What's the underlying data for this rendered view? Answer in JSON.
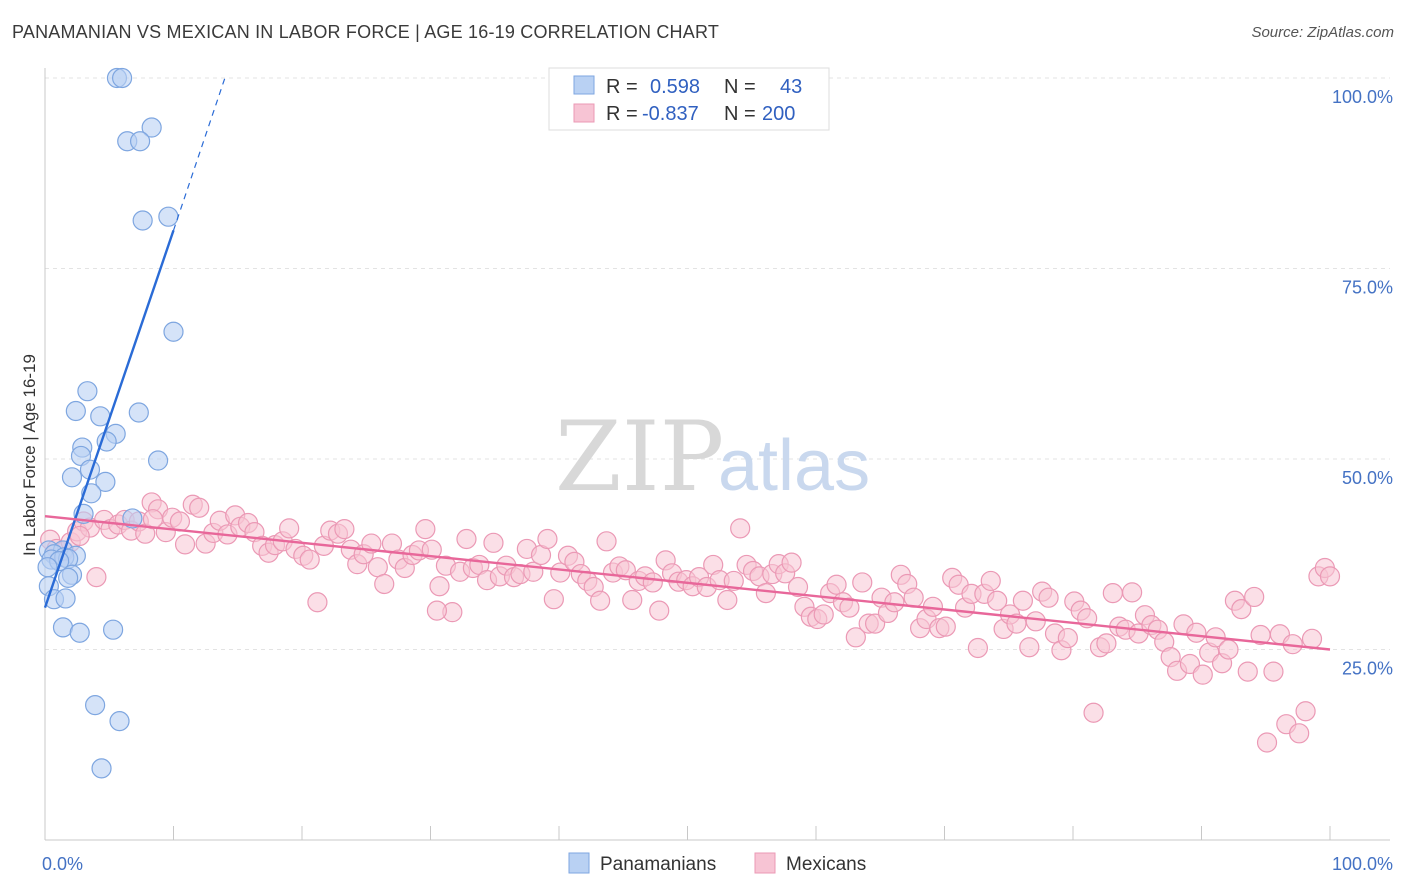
{
  "title": "PANAMANIAN VS MEXICAN IN LABOR FORCE | AGE 16-19 CORRELATION CHART",
  "source": "Source: ZipAtlas.com",
  "watermark": {
    "zip": "ZIP",
    "atlas": "atlas"
  },
  "colors": {
    "blue_fill": "#b9d1f3",
    "blue_stroke": "#7ea6e0",
    "blue_line": "#2a6bd6",
    "pink_fill": "#f7c4d4",
    "pink_stroke": "#eb99b5",
    "pink_line": "#e8679a",
    "grid": "#e3e3e3",
    "tick_label": "#4472c4"
  },
  "legend": {
    "rows": [
      {
        "r_label": "R =",
        "r_value": "0.598",
        "n_label": "N =",
        "n_value": "43"
      },
      {
        "r_label": "R =",
        "r_value": "-0.837",
        "n_label": "N =",
        "n_value": "200"
      }
    ]
  },
  "bottom_legend": [
    "Panamanians",
    "Mexicans"
  ],
  "chart_data": {
    "type": "scatter",
    "title": "PANAMANIAN VS MEXICAN IN LABOR FORCE | AGE 16-19 CORRELATION CHART",
    "xlabel": "",
    "ylabel": "In Labor Force | Age 16-19",
    "xlim": [
      0,
      100
    ],
    "ylim": [
      0,
      100
    ],
    "x_tick_labels": [
      "0.0%",
      "100.0%"
    ],
    "y_ticks": [
      25,
      50,
      75,
      100
    ],
    "y_tick_labels": [
      "25.0%",
      "50.0%",
      "75.0%",
      "100.0%"
    ],
    "grid": true,
    "legend_position": "top-center",
    "series": [
      {
        "name": "Panamanians",
        "R": 0.598,
        "N": 43,
        "trend": {
          "x0": 0.0,
          "y0": 30.5,
          "x1": 10.0,
          "y1": 80.0,
          "dash_to_x": 14.0,
          "dash_to_y": 100.0
        },
        "points": [
          [
            5.6,
            100
          ],
          [
            6.0,
            100
          ],
          [
            8.3,
            93.5
          ],
          [
            6.4,
            91.7
          ],
          [
            7.4,
            91.7
          ],
          [
            7.6,
            81.3
          ],
          [
            9.6,
            81.8
          ],
          [
            10.0,
            66.7
          ],
          [
            3.3,
            58.9
          ],
          [
            2.4,
            56.3
          ],
          [
            4.3,
            55.6
          ],
          [
            7.3,
            56.1
          ],
          [
            5.5,
            53.3
          ],
          [
            4.8,
            52.3
          ],
          [
            2.9,
            51.5
          ],
          [
            2.8,
            50.4
          ],
          [
            8.8,
            49.8
          ],
          [
            3.5,
            48.6
          ],
          [
            2.1,
            47.6
          ],
          [
            4.7,
            47.0
          ],
          [
            3.6,
            45.5
          ],
          [
            3.0,
            42.8
          ],
          [
            6.8,
            42.2
          ],
          [
            0.3,
            38.0
          ],
          [
            1.4,
            38.0
          ],
          [
            0.7,
            37.5
          ],
          [
            2.4,
            37.3
          ],
          [
            0.5,
            36.8
          ],
          [
            1.5,
            37.1
          ],
          [
            1.8,
            36.9
          ],
          [
            1.1,
            36.6
          ],
          [
            0.2,
            35.8
          ],
          [
            2.1,
            34.8
          ],
          [
            1.8,
            34.4
          ],
          [
            0.3,
            33.3
          ],
          [
            0.7,
            31.6
          ],
          [
            1.6,
            31.7
          ],
          [
            1.4,
            27.9
          ],
          [
            2.7,
            27.2
          ],
          [
            5.3,
            27.6
          ],
          [
            3.9,
            17.7
          ],
          [
            5.8,
            15.6
          ],
          [
            4.4,
            9.4
          ]
        ]
      },
      {
        "name": "Mexicans",
        "R": -0.837,
        "N": 200,
        "trend": {
          "x0": 0.0,
          "y0": 42.5,
          "x1": 100.0,
          "y1": 25.0
        },
        "points": [
          [
            0.4,
            39.4
          ],
          [
            0.9,
            38.2
          ],
          [
            1.5,
            37.9
          ],
          [
            2.0,
            39.1
          ],
          [
            2.5,
            40.5
          ],
          [
            3.0,
            41.8
          ],
          [
            3.5,
            41.0
          ],
          [
            4.0,
            34.5
          ],
          [
            4.6,
            42.0
          ],
          [
            5.1,
            40.8
          ],
          [
            5.7,
            41.4
          ],
          [
            6.2,
            42.0
          ],
          [
            6.7,
            40.6
          ],
          [
            7.3,
            41.8
          ],
          [
            7.8,
            40.2
          ],
          [
            8.3,
            44.3
          ],
          [
            8.8,
            43.4
          ],
          [
            9.4,
            40.4
          ],
          [
            9.9,
            42.3
          ],
          [
            10.5,
            41.8
          ],
          [
            10.9,
            38.8
          ],
          [
            11.5,
            44.0
          ],
          [
            12.0,
            43.6
          ],
          [
            12.5,
            38.9
          ],
          [
            13.1,
            40.3
          ],
          [
            13.6,
            41.9
          ],
          [
            14.2,
            40.1
          ],
          [
            14.8,
            42.6
          ],
          [
            15.2,
            41.1
          ],
          [
            15.8,
            41.6
          ],
          [
            16.3,
            40.4
          ],
          [
            16.9,
            38.6
          ],
          [
            17.4,
            37.7
          ],
          [
            17.9,
            38.7
          ],
          [
            18.5,
            39.2
          ],
          [
            19.0,
            40.9
          ],
          [
            19.5,
            38.2
          ],
          [
            20.1,
            37.3
          ],
          [
            20.6,
            36.8
          ],
          [
            21.2,
            31.2
          ],
          [
            21.7,
            38.6
          ],
          [
            22.2,
            40.6
          ],
          [
            22.8,
            40.2
          ],
          [
            23.3,
            40.8
          ],
          [
            23.8,
            38.1
          ],
          [
            24.3,
            36.2
          ],
          [
            24.8,
            37.5
          ],
          [
            25.4,
            38.9
          ],
          [
            25.9,
            35.8
          ],
          [
            26.4,
            33.6
          ],
          [
            27.0,
            38.9
          ],
          [
            27.5,
            36.8
          ],
          [
            28.0,
            35.7
          ],
          [
            28.6,
            37.4
          ],
          [
            29.1,
            38.0
          ],
          [
            29.6,
            40.8
          ],
          [
            30.1,
            38.1
          ],
          [
            30.7,
            33.3
          ],
          [
            31.2,
            36.0
          ],
          [
            31.7,
            29.9
          ],
          [
            32.3,
            35.2
          ],
          [
            32.8,
            39.5
          ],
          [
            33.3,
            35.7
          ],
          [
            33.8,
            36.1
          ],
          [
            34.4,
            34.1
          ],
          [
            34.9,
            39.0
          ],
          [
            35.4,
            34.6
          ],
          [
            35.9,
            36.0
          ],
          [
            36.5,
            34.5
          ],
          [
            37.0,
            34.9
          ],
          [
            37.5,
            38.2
          ],
          [
            38.0,
            35.2
          ],
          [
            38.6,
            37.4
          ],
          [
            39.1,
            39.5
          ],
          [
            39.6,
            31.6
          ],
          [
            40.1,
            35.1
          ],
          [
            40.7,
            37.3
          ],
          [
            41.2,
            36.5
          ],
          [
            41.7,
            34.9
          ],
          [
            42.2,
            34.0
          ],
          [
            42.7,
            33.2
          ],
          [
            43.2,
            31.4
          ],
          [
            43.7,
            39.2
          ],
          [
            44.2,
            35.1
          ],
          [
            44.7,
            35.9
          ],
          [
            45.2,
            35.4
          ],
          [
            45.7,
            31.5
          ],
          [
            46.2,
            34.0
          ],
          [
            46.7,
            34.6
          ],
          [
            47.3,
            33.8
          ],
          [
            47.8,
            30.1
          ],
          [
            48.3,
            36.7
          ],
          [
            48.8,
            35.0
          ],
          [
            49.3,
            33.9
          ],
          [
            49.9,
            34.1
          ],
          [
            50.4,
            33.3
          ],
          [
            50.9,
            34.5
          ],
          [
            51.5,
            33.2
          ],
          [
            52.0,
            36.1
          ],
          [
            52.5,
            34.1
          ],
          [
            53.1,
            31.5
          ],
          [
            53.6,
            34.0
          ],
          [
            54.1,
            40.9
          ],
          [
            54.6,
            36.1
          ],
          [
            55.1,
            35.3
          ],
          [
            55.6,
            34.6
          ],
          [
            56.1,
            32.4
          ],
          [
            56.6,
            34.9
          ],
          [
            57.1,
            36.2
          ],
          [
            57.6,
            35.0
          ],
          [
            58.1,
            36.4
          ],
          [
            58.6,
            33.2
          ],
          [
            59.1,
            30.6
          ],
          [
            59.6,
            29.3
          ],
          [
            60.1,
            29.0
          ],
          [
            60.6,
            29.6
          ],
          [
            61.1,
            32.4
          ],
          [
            61.6,
            33.5
          ],
          [
            62.1,
            31.2
          ],
          [
            62.6,
            30.5
          ],
          [
            63.1,
            26.6
          ],
          [
            63.6,
            33.8
          ],
          [
            64.1,
            28.4
          ],
          [
            64.6,
            28.4
          ],
          [
            65.1,
            31.8
          ],
          [
            65.6,
            29.8
          ],
          [
            66.1,
            31.2
          ],
          [
            66.6,
            34.8
          ],
          [
            67.1,
            33.6
          ],
          [
            67.6,
            31.8
          ],
          [
            68.1,
            27.8
          ],
          [
            68.6,
            29.0
          ],
          [
            69.1,
            30.6
          ],
          [
            69.6,
            27.8
          ],
          [
            70.1,
            28.0
          ],
          [
            70.6,
            34.4
          ],
          [
            71.1,
            33.5
          ],
          [
            71.6,
            30.5
          ],
          [
            72.1,
            32.3
          ],
          [
            72.6,
            25.2
          ],
          [
            73.1,
            32.3
          ],
          [
            73.6,
            34.0
          ],
          [
            74.1,
            31.4
          ],
          [
            74.6,
            27.7
          ],
          [
            75.1,
            29.6
          ],
          [
            75.6,
            28.4
          ],
          [
            76.1,
            31.4
          ],
          [
            76.6,
            25.3
          ],
          [
            77.1,
            28.7
          ],
          [
            77.6,
            32.6
          ],
          [
            78.1,
            31.8
          ],
          [
            78.6,
            27.1
          ],
          [
            79.1,
            24.9
          ],
          [
            79.6,
            26.5
          ],
          [
            80.1,
            31.3
          ],
          [
            80.6,
            30.1
          ],
          [
            81.1,
            29.1
          ],
          [
            81.6,
            16.7
          ],
          [
            82.1,
            25.3
          ],
          [
            82.6,
            25.8
          ],
          [
            83.1,
            32.4
          ],
          [
            83.6,
            28.0
          ],
          [
            84.1,
            27.6
          ],
          [
            84.6,
            32.5
          ],
          [
            85.1,
            27.1
          ],
          [
            85.6,
            29.5
          ],
          [
            86.1,
            28.2
          ],
          [
            86.6,
            27.6
          ],
          [
            87.1,
            26.0
          ],
          [
            87.6,
            24.0
          ],
          [
            88.1,
            22.2
          ],
          [
            88.6,
            28.3
          ],
          [
            89.1,
            23.1
          ],
          [
            89.6,
            27.2
          ],
          [
            90.1,
            21.7
          ],
          [
            90.6,
            24.6
          ],
          [
            91.1,
            26.6
          ],
          [
            91.6,
            23.2
          ],
          [
            92.1,
            25.0
          ],
          [
            92.6,
            31.4
          ],
          [
            93.1,
            30.3
          ],
          [
            93.6,
            22.1
          ],
          [
            94.1,
            31.9
          ],
          [
            94.6,
            26.9
          ],
          [
            95.1,
            12.8
          ],
          [
            95.6,
            22.1
          ],
          [
            96.1,
            27.0
          ],
          [
            96.6,
            15.2
          ],
          [
            97.1,
            25.7
          ],
          [
            97.6,
            14.0
          ],
          [
            98.1,
            16.9
          ],
          [
            98.6,
            26.4
          ],
          [
            99.1,
            34.6
          ],
          [
            99.6,
            35.7
          ],
          [
            100.0,
            34.6
          ],
          [
            8.4,
            42.1
          ],
          [
            2.7,
            39.9
          ],
          [
            30.5,
            30.1
          ]
        ]
      }
    ]
  }
}
